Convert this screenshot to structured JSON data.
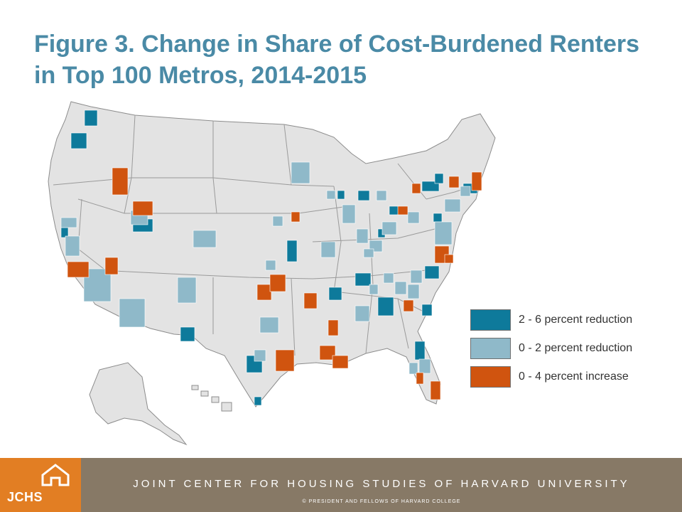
{
  "title": "Figure 3. Change in Share of Cost-Burdened Renters in Top 100 Metros, 2014-2015",
  "legend": [
    {
      "label": "2 - 6 percent reduction",
      "color": "#0e7a9b"
    },
    {
      "label": "0 - 2 percent reduction",
      "color": "#8fb9c9"
    },
    {
      "label": "0 - 4 percent increase",
      "color": "#d0540f"
    }
  ],
  "map_colors": {
    "land": "#e3e3e3",
    "border": "#8c8c8c"
  },
  "footer": {
    "logo_text": "JCHS",
    "org_name": "JOINT CENTER FOR HOUSING STUDIES OF HARVARD UNIVERSITY",
    "copyright": "© PRESIDENT AND FELLOWS OF HARVARD COLLEGE"
  }
}
